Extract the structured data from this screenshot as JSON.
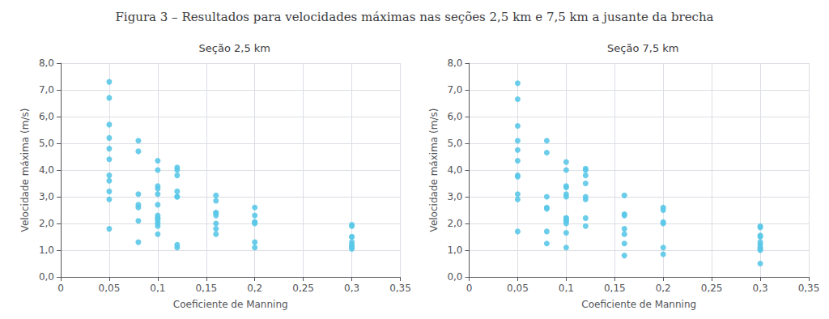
{
  "title": "Figura 3 – Resultados para velocidades máximas nas seções 2,5 km e 7,5 km a jusante da brecha",
  "chart_data": [
    {
      "type": "scatter",
      "title": "Seção 2,5 km",
      "xlabel": "Coeficiente de Manning",
      "ylabel": "Velocidade máxima (m/s)",
      "color": "#5BC8E8",
      "grid": true,
      "xlim": [
        0,
        0.35
      ],
      "ylim": [
        0,
        8.0
      ],
      "xticks": [
        0,
        {
          "value": 0.05,
          "label": "0,05"
        },
        {
          "value": 0.1,
          "label": "0,1"
        },
        {
          "value": 0.15,
          "label": "0,15"
        },
        {
          "value": 0.2,
          "label": "0,2"
        },
        {
          "value": 0.25,
          "label": "0,25"
        },
        {
          "value": 0.3,
          "label": "0,3"
        },
        {
          "value": 0.35,
          "label": "0,35"
        }
      ],
      "yticks": [
        {
          "value": 0.0,
          "label": "0,0"
        },
        {
          "value": 1.0,
          "label": "1,0"
        },
        {
          "value": 2.0,
          "label": "2,0"
        },
        {
          "value": 3.0,
          "label": "3,0"
        },
        {
          "value": 4.0,
          "label": "4,0"
        },
        {
          "value": 5.0,
          "label": "5,0"
        },
        {
          "value": 6.0,
          "label": "6,0"
        },
        {
          "value": 7.0,
          "label": "7,0"
        },
        {
          "value": 8.0,
          "label": "8,0"
        }
      ],
      "x": [
        0.05,
        0.05,
        0.05,
        0.05,
        0.05,
        0.05,
        0.05,
        0.05,
        0.05,
        0.05,
        0.05,
        0.08,
        0.08,
        0.08,
        0.08,
        0.08,
        0.08,
        0.08,
        0.1,
        0.1,
        0.1,
        0.1,
        0.1,
        0.1,
        0.1,
        0.1,
        0.1,
        0.1,
        0.1,
        0.1,
        0.1,
        0.12,
        0.12,
        0.12,
        0.12,
        0.12,
        0.12,
        0.12,
        0.12,
        0.16,
        0.16,
        0.16,
        0.16,
        0.16,
        0.16,
        0.16,
        0.16,
        0.2,
        0.2,
        0.2,
        0.2,
        0.2,
        0.2,
        0.2,
        0.3,
        0.3,
        0.3,
        0.3,
        0.3,
        0.3,
        0.3,
        0.3,
        0.3
      ],
      "values": [
        7.3,
        6.7,
        5.7,
        5.2,
        4.8,
        4.4,
        3.8,
        3.6,
        3.2,
        2.9,
        1.8,
        5.1,
        4.7,
        3.1,
        2.7,
        2.6,
        2.1,
        1.3,
        4.35,
        4.0,
        3.4,
        3.3,
        3.1,
        2.7,
        2.3,
        2.2,
        2.2,
        2.1,
        2.0,
        1.9,
        1.6,
        1.2,
        1.1,
        4.1,
        4.0,
        3.8,
        3.2,
        3.0,
        3.0,
        2.3,
        2.0,
        3.05,
        2.85,
        2.4,
        2.4,
        1.8,
        1.6,
        1.3,
        1.1,
        2.6,
        2.3,
        2.05,
        2.05,
        2.0,
        1.5,
        1.1,
        1.95,
        1.9,
        1.5,
        1.3,
        1.2,
        1.15,
        1.05
      ]
    },
    {
      "type": "scatter",
      "title": "Seção 7,5 km",
      "xlabel": "Coeficiente de Manning",
      "ylabel": "Velocidade máxima (m/s)",
      "color": "#5BC8E8",
      "grid": true,
      "xlim": [
        0,
        0.35
      ],
      "ylim": [
        0,
        8.0
      ],
      "xticks": [
        0,
        {
          "value": 0.05,
          "label": "0,05"
        },
        {
          "value": 0.1,
          "label": "0,1"
        },
        {
          "value": 0.15,
          "label": "0,15"
        },
        {
          "value": 0.2,
          "label": "0,2"
        },
        {
          "value": 0.25,
          "label": "0,25"
        },
        {
          "value": 0.3,
          "label": "0,3"
        },
        {
          "value": 0.35,
          "label": "0,35"
        }
      ],
      "yticks": [
        {
          "value": 0.0,
          "label": "0,0"
        },
        {
          "value": 1.0,
          "label": "1,0"
        },
        {
          "value": 2.0,
          "label": "2,0"
        },
        {
          "value": 3.0,
          "label": "3,0"
        },
        {
          "value": 4.0,
          "label": "4,0"
        },
        {
          "value": 5.0,
          "label": "5,0"
        },
        {
          "value": 6.0,
          "label": "6,0"
        },
        {
          "value": 7.0,
          "label": "7,0"
        },
        {
          "value": 8.0,
          "label": "8,0"
        }
      ],
      "x": [
        0.05,
        0.05,
        0.05,
        0.05,
        0.05,
        0.05,
        0.05,
        0.05,
        0.05,
        0.05,
        0.05,
        0.08,
        0.08,
        0.08,
        0.08,
        0.08,
        0.08,
        0.08,
        0.1,
        0.1,
        0.1,
        0.1,
        0.1,
        0.1,
        0.1,
        0.1,
        0.1,
        0.1,
        0.1,
        0.1,
        0.1,
        0.12,
        0.12,
        0.12,
        0.12,
        0.12,
        0.12,
        0.12,
        0.12,
        0.16,
        0.16,
        0.16,
        0.16,
        0.16,
        0.16,
        0.16,
        0.2,
        0.2,
        0.2,
        0.2,
        0.2,
        0.2,
        0.3,
        0.3,
        0.3,
        0.3,
        0.3,
        0.3,
        0.3,
        0.3,
        0.3,
        0.3
      ],
      "values": [
        7.25,
        6.65,
        5.65,
        5.1,
        4.75,
        4.35,
        3.8,
        3.75,
        3.1,
        2.9,
        1.7,
        5.1,
        4.65,
        3.0,
        2.6,
        2.55,
        1.7,
        1.25,
        4.3,
        4.0,
        3.4,
        3.35,
        3.1,
        3.0,
        2.2,
        2.2,
        2.1,
        2.1,
        2.0,
        1.65,
        1.1,
        4.05,
        4.0,
        3.8,
        3.5,
        3.0,
        2.9,
        2.2,
        1.9,
        3.05,
        2.35,
        2.3,
        1.8,
        1.6,
        1.25,
        0.8,
        2.6,
        2.5,
        2.05,
        2.0,
        1.1,
        0.85,
        1.9,
        1.85,
        1.55,
        1.5,
        1.3,
        1.2,
        1.1,
        1.05,
        1.0,
        0.5
      ]
    }
  ]
}
